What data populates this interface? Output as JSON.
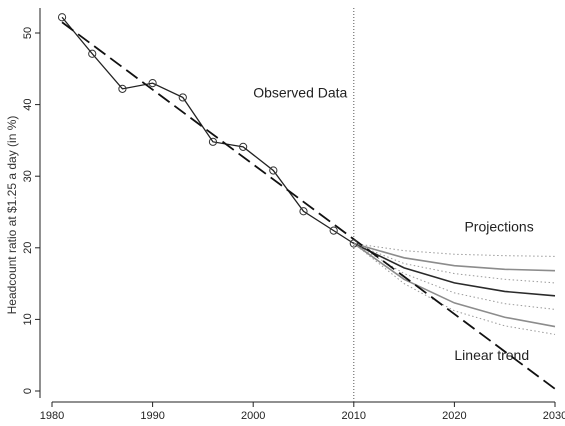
{
  "chart_data": {
    "type": "line",
    "ylabel": "Headcount ratio at $1.25 a day (in %)",
    "xlim": [
      1980,
      2030
    ],
    "ylim": [
      0,
      52
    ],
    "xticks": [
      1980,
      1990,
      2000,
      2010,
      2020,
      2030
    ],
    "yticks": [
      0,
      10,
      20,
      30,
      40,
      50
    ],
    "grid": false,
    "reference_line_x": 2010,
    "series": [
      {
        "name": "Observed Data",
        "style": "solid-with-circle-markers",
        "color": "#222222",
        "x": [
          1981,
          1984,
          1987,
          1990,
          1993,
          1996,
          1999,
          2002,
          2005,
          2008,
          2010
        ],
        "y": [
          52.2,
          47.1,
          42.2,
          43.0,
          41.0,
          34.8,
          34.1,
          30.8,
          25.1,
          22.4,
          20.6
        ]
      },
      {
        "name": "Linear trend",
        "style": "long-dash",
        "color": "#111111",
        "x": [
          1981,
          2030
        ],
        "y": [
          51.5,
          0.3
        ]
      }
    ],
    "projections": {
      "label": "Projections",
      "lines": [
        {
          "style": "dotted",
          "color": "#9a9a9a",
          "x": [
            2010,
            2015,
            2020,
            2025,
            2030
          ],
          "y": [
            20.6,
            19.6,
            19.1,
            18.9,
            18.8
          ]
        },
        {
          "style": "solid",
          "color": "#8c8c8c",
          "x": [
            2010,
            2015,
            2020,
            2025,
            2030
          ],
          "y": [
            20.6,
            18.6,
            17.5,
            17.0,
            16.8
          ]
        },
        {
          "style": "dotted",
          "color": "#9a9a9a",
          "x": [
            2010,
            2015,
            2020,
            2025,
            2030
          ],
          "y": [
            20.6,
            17.8,
            16.4,
            15.6,
            15.1
          ]
        },
        {
          "style": "solid",
          "color": "#2a2a2a",
          "x": [
            2010,
            2015,
            2020,
            2025,
            2030
          ],
          "y": [
            20.6,
            17.2,
            15.1,
            13.9,
            13.3
          ]
        },
        {
          "style": "dotted",
          "color": "#9a9a9a",
          "x": [
            2010,
            2015,
            2020,
            2025,
            2030
          ],
          "y": [
            20.6,
            16.4,
            13.7,
            12.2,
            11.4
          ]
        },
        {
          "style": "solid",
          "color": "#8c8c8c",
          "x": [
            2010,
            2015,
            2020,
            2025,
            2030
          ],
          "y": [
            20.6,
            15.6,
            12.3,
            10.3,
            9.0
          ]
        },
        {
          "style": "dotted",
          "color": "#9a9a9a",
          "x": [
            2010,
            2015,
            2020,
            2025,
            2030
          ],
          "y": [
            20.6,
            15.0,
            11.2,
            9.1,
            7.9
          ]
        }
      ]
    },
    "annotations": [
      {
        "text": "Observed Data",
        "x": 2000,
        "y": 41
      },
      {
        "text": "Projections",
        "x": 2021,
        "y": 22.3
      },
      {
        "text": "Linear trend",
        "x": 2020,
        "y": 4.3
      }
    ]
  }
}
